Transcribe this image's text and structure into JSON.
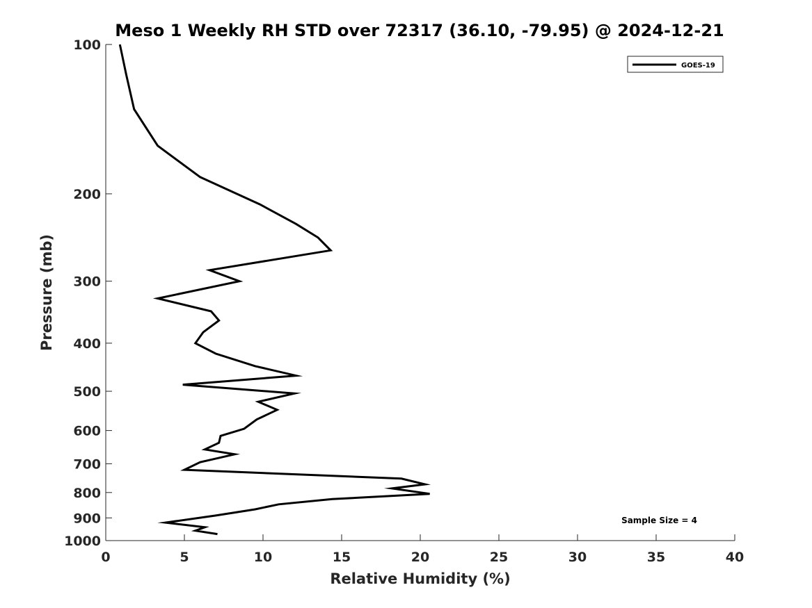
{
  "chart_data": {
    "type": "line",
    "title": "Meso 1 Weekly RH STD over 72317 (36.10, -79.95) @ 2024-12-21",
    "xlabel": "Relative Humidity (%)",
    "ylabel": "Pressure (mb)",
    "xlim": [
      0,
      40
    ],
    "ylim": [
      100,
      1000
    ],
    "y_scale": "log",
    "y_reversed": true,
    "x_ticks": [
      0,
      5,
      10,
      15,
      20,
      25,
      30,
      35,
      40
    ],
    "x_tick_labels": [
      "0",
      "5",
      "10",
      "15",
      "20",
      "25",
      "30",
      "35",
      "40"
    ],
    "y_ticks": [
      100,
      200,
      300,
      400,
      500,
      600,
      700,
      800,
      900,
      1000
    ],
    "y_tick_labels": [
      "100",
      "200",
      "300",
      "400",
      "500",
      "600",
      "700",
      "800",
      "900",
      "1000"
    ],
    "grid": false,
    "legend_position": "top-right",
    "series": [
      {
        "name": "GOES-19",
        "color": "#000000",
        "points": [
          [
            0.9,
            100
          ],
          [
            1.3,
            115
          ],
          [
            1.8,
            135
          ],
          [
            3.3,
            160
          ],
          [
            6.0,
            185
          ],
          [
            9.8,
            210
          ],
          [
            12.1,
            230
          ],
          [
            13.5,
            245
          ],
          [
            14.3,
            260
          ],
          [
            6.6,
            285
          ],
          [
            8.5,
            300
          ],
          [
            3.3,
            325
          ],
          [
            6.7,
            345
          ],
          [
            7.2,
            360
          ],
          [
            6.2,
            380
          ],
          [
            5.7,
            400
          ],
          [
            7.0,
            420
          ],
          [
            9.5,
            445
          ],
          [
            12.1,
            465
          ],
          [
            4.9,
            485
          ],
          [
            12.0,
            505
          ],
          [
            9.7,
            525
          ],
          [
            10.9,
            545
          ],
          [
            9.6,
            570
          ],
          [
            8.8,
            595
          ],
          [
            7.3,
            615
          ],
          [
            7.2,
            635
          ],
          [
            6.3,
            655
          ],
          [
            8.2,
            670
          ],
          [
            6.0,
            695
          ],
          [
            5.0,
            720
          ],
          [
            18.8,
            750
          ],
          [
            20.3,
            770
          ],
          [
            18.2,
            785
          ],
          [
            20.6,
            805
          ],
          [
            14.4,
            825
          ],
          [
            11.0,
            845
          ],
          [
            9.5,
            865
          ],
          [
            7.0,
            890
          ],
          [
            3.8,
            920
          ],
          [
            6.3,
            940
          ],
          [
            5.7,
            955
          ],
          [
            7.1,
            970
          ]
        ]
      }
    ],
    "annotations": [
      {
        "text": "Sample Size = 4",
        "x": 35.2,
        "y": 910
      }
    ]
  }
}
